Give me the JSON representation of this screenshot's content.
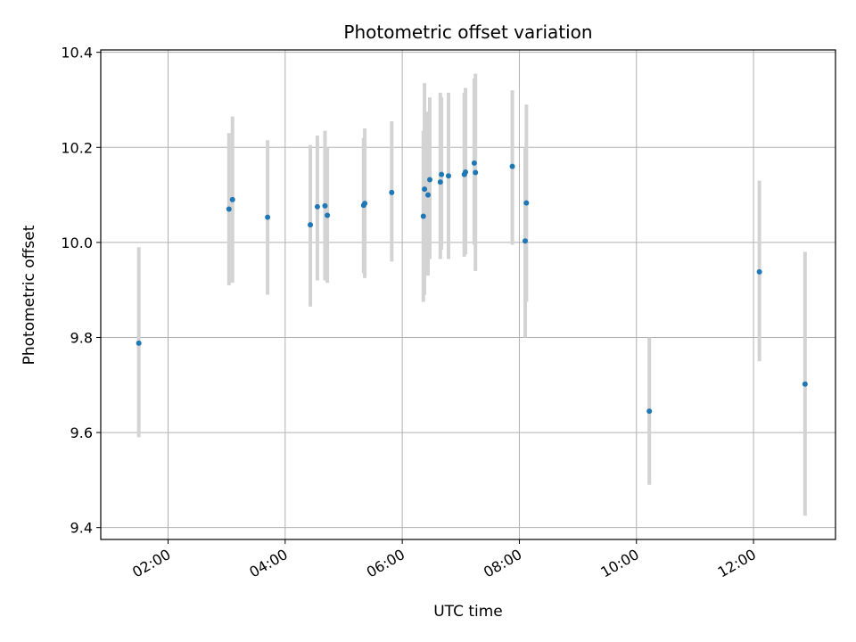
{
  "chart_data": {
    "type": "scatter",
    "title": "Photometric offset variation",
    "xlabel": "UTC time",
    "ylabel": "Photometric offset",
    "x_unit": "hours UTC",
    "xlim": [
      0.85,
      13.4
    ],
    "ylim": [
      9.375,
      10.405
    ],
    "x_ticks": [
      {
        "value": 2,
        "label": "02:00"
      },
      {
        "value": 4,
        "label": "04:00"
      },
      {
        "value": 6,
        "label": "06:00"
      },
      {
        "value": 8,
        "label": "08:00"
      },
      {
        "value": 10,
        "label": "10:00"
      },
      {
        "value": 12,
        "label": "12:00"
      }
    ],
    "y_ticks": [
      {
        "value": 9.4,
        "label": "9.4"
      },
      {
        "value": 9.6,
        "label": "9.6"
      },
      {
        "value": 9.8,
        "label": "9.8"
      },
      {
        "value": 10.0,
        "label": "10.0"
      },
      {
        "value": 10.2,
        "label": "10.2"
      },
      {
        "value": 10.4,
        "label": "10.4"
      }
    ],
    "grid": true,
    "marker_color": "#1f77b4",
    "errorbar_color": "#d3d3d3",
    "points": [
      {
        "time": "01:30",
        "x": 1.5,
        "y": 9.788,
        "ylow": 9.59,
        "yhigh": 9.99
      },
      {
        "time": "03:02",
        "x": 3.04,
        "y": 10.07,
        "ylow": 9.91,
        "yhigh": 10.23
      },
      {
        "time": "03:06",
        "x": 3.1,
        "y": 10.09,
        "ylow": 9.915,
        "yhigh": 10.265
      },
      {
        "time": "03:42",
        "x": 3.7,
        "y": 10.053,
        "ylow": 9.89,
        "yhigh": 10.215
      },
      {
        "time": "04:26",
        "x": 4.43,
        "y": 10.037,
        "ylow": 9.865,
        "yhigh": 10.205
      },
      {
        "time": "04:33",
        "x": 4.55,
        "y": 10.075,
        "ylow": 9.92,
        "yhigh": 10.225
      },
      {
        "time": "04:41",
        "x": 4.68,
        "y": 10.077,
        "ylow": 9.92,
        "yhigh": 10.235
      },
      {
        "time": "04:43",
        "x": 4.72,
        "y": 10.057,
        "ylow": 9.915,
        "yhigh": 10.2
      },
      {
        "time": "05:20",
        "x": 5.34,
        "y": 10.078,
        "ylow": 9.935,
        "yhigh": 10.22
      },
      {
        "time": "05:21",
        "x": 5.36,
        "y": 10.082,
        "ylow": 9.925,
        "yhigh": 10.24
      },
      {
        "time": "05:49",
        "x": 5.82,
        "y": 10.105,
        "ylow": 9.96,
        "yhigh": 10.255
      },
      {
        "time": "06:21",
        "x": 6.36,
        "y": 10.055,
        "ylow": 9.875,
        "yhigh": 10.235
      },
      {
        "time": "06:22",
        "x": 6.38,
        "y": 10.112,
        "ylow": 9.89,
        "yhigh": 10.335
      },
      {
        "time": "06:26",
        "x": 6.44,
        "y": 10.1,
        "ylow": 9.93,
        "yhigh": 10.275
      },
      {
        "time": "06:28",
        "x": 6.47,
        "y": 10.132,
        "ylow": 9.965,
        "yhigh": 10.305
      },
      {
        "time": "06:39",
        "x": 6.65,
        "y": 10.127,
        "ylow": 9.965,
        "yhigh": 10.315
      },
      {
        "time": "06:40",
        "x": 6.67,
        "y": 10.143,
        "ylow": 9.985,
        "yhigh": 10.305
      },
      {
        "time": "06:47",
        "x": 6.79,
        "y": 10.14,
        "ylow": 9.965,
        "yhigh": 10.315
      },
      {
        "time": "07:04",
        "x": 7.06,
        "y": 10.143,
        "ylow": 9.97,
        "yhigh": 10.315
      },
      {
        "time": "07:05",
        "x": 7.08,
        "y": 10.148,
        "ylow": 9.975,
        "yhigh": 10.325
      },
      {
        "time": "07:14",
        "x": 7.23,
        "y": 10.167,
        "ylow": 9.995,
        "yhigh": 10.345
      },
      {
        "time": "07:15",
        "x": 7.25,
        "y": 10.147,
        "ylow": 9.94,
        "yhigh": 10.355
      },
      {
        "time": "07:53",
        "x": 7.88,
        "y": 10.16,
        "ylow": 9.995,
        "yhigh": 10.32
      },
      {
        "time": "08:06",
        "x": 8.1,
        "y": 10.003,
        "ylow": 9.8,
        "yhigh": 10.2
      },
      {
        "time": "08:07",
        "x": 8.12,
        "y": 10.083,
        "ylow": 9.875,
        "yhigh": 10.29
      },
      {
        "time": "10:13",
        "x": 10.22,
        "y": 9.645,
        "ylow": 9.49,
        "yhigh": 9.8
      },
      {
        "time": "12:06",
        "x": 12.1,
        "y": 9.938,
        "ylow": 9.75,
        "yhigh": 10.13
      },
      {
        "time": "12:53",
        "x": 12.88,
        "y": 9.702,
        "ylow": 9.425,
        "yhigh": 9.98
      }
    ]
  }
}
